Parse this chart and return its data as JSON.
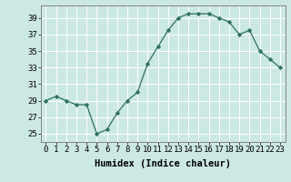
{
  "x": [
    0,
    1,
    2,
    3,
    4,
    5,
    6,
    7,
    8,
    9,
    10,
    11,
    12,
    13,
    14,
    15,
    16,
    17,
    18,
    19,
    20,
    21,
    22,
    23
  ],
  "y": [
    29,
    29.5,
    29,
    28.5,
    28.5,
    25,
    25.5,
    27.5,
    29,
    30,
    33.5,
    35.5,
    37.5,
    39,
    39.5,
    39.5,
    39.5,
    39,
    38.5,
    37,
    37.5,
    35,
    34,
    33
  ],
  "line_color": "#2e7060",
  "marker": "D",
  "markersize": 2.2,
  "bg_color": "#cce8e4",
  "grid_color": "#ffffff",
  "xlabel": "Humidex (Indice chaleur)",
  "ylim": [
    24,
    40.5
  ],
  "xlim": [
    -0.5,
    23.5
  ],
  "yticks": [
    25,
    27,
    29,
    31,
    33,
    35,
    37,
    39
  ],
  "xtick_labels": [
    "0",
    "1",
    "2",
    "3",
    "4",
    "5",
    "6",
    "7",
    "8",
    "9",
    "10",
    "11",
    "12",
    "13",
    "14",
    "15",
    "16",
    "17",
    "18",
    "19",
    "20",
    "21",
    "22",
    "23"
  ],
  "xlabel_fontsize": 7.5,
  "tick_fontsize": 6.5
}
